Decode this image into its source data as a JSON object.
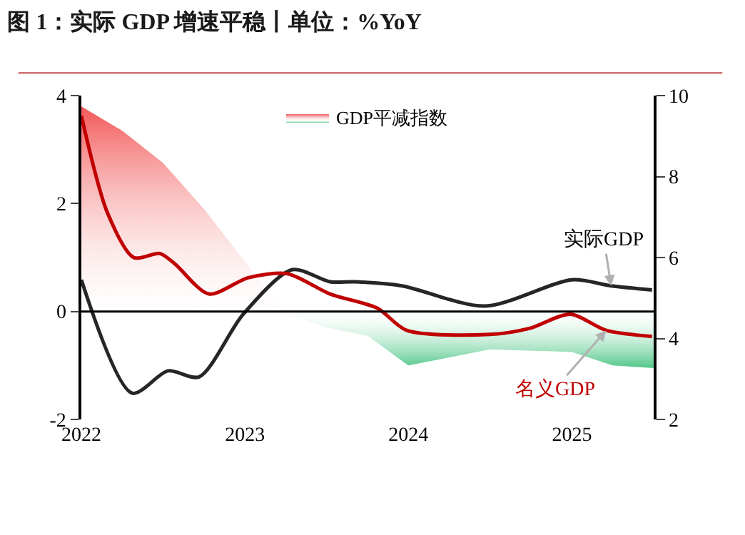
{
  "chart_data": {
    "type": "area",
    "title": "图 1：实际 GDP 增速平稳丨单位：%YoY",
    "xlim": [
      2022,
      2025.5
    ],
    "xticks": [
      2022,
      2023,
      2024,
      2025
    ],
    "ylim": [
      -2,
      4
    ],
    "yticks": [
      -2,
      0,
      2,
      4
    ],
    "y2lim": [
      2,
      10
    ],
    "y2ticks": [
      2,
      4,
      6,
      8,
      10
    ],
    "legend": "top",
    "ref_lines": [
      {
        "axis": "y",
        "value": 0,
        "color": "#000000"
      }
    ],
    "series": [
      {
        "name": "GDP平减指数",
        "color": "#f03a3a",
        "colors": [
          "#f03a3a",
          "#f03a3a",
          "#f03a3a",
          "#f03a3a",
          "#3cc07a",
          "#3cc07a",
          "#3cc07a",
          "#3cc07a",
          "#3cc07a",
          "#3cc07a",
          "#3cc07a",
          "#3cc07a"
        ],
        "x": [
          2022,
          2022.25,
          2022.5,
          2022.75,
          2023.25,
          2023.5,
          2023.75,
          2024,
          2024.5,
          2025,
          2025.25,
          2025.5
        ],
        "values": [
          3.8,
          3.35,
          2.75,
          1.9,
          -0.05,
          -0.3,
          -0.45,
          -1.0,
          -0.7,
          -0.75,
          -1.0,
          -1.05
        ]
      },
      {
        "name": "实际GDP",
        "type": "line",
        "axis": "y2",
        "color": "#262626",
        "x": [
          2022,
          2022.31,
          2022.53,
          2022.72,
          2022.99,
          2023.29,
          2023.52,
          2023.67,
          2023.96,
          2024.47,
          2025.0,
          2025.24,
          2025.49
        ],
        "values": [
          5.45,
          2.65,
          3.2,
          3.05,
          4.6,
          5.7,
          5.4,
          5.4,
          5.3,
          4.8,
          5.45,
          5.3,
          5.2
        ]
      },
      {
        "name": "名义GDP",
        "type": "line",
        "axis": "y2",
        "color": "#c00000",
        "x": [
          2022,
          2022.16,
          2022.32,
          2022.48,
          2022.57,
          2022.78,
          2023.02,
          2023.26,
          2023.52,
          2023.81,
          2023.99,
          2024.5,
          2024.74,
          2024.99,
          2025.21,
          2025.49
        ],
        "values": [
          9.5,
          7.1,
          6.0,
          6.1,
          5.85,
          5.1,
          5.5,
          5.6,
          5.1,
          4.75,
          4.2,
          4.1,
          4.25,
          4.6,
          4.2,
          4.05
        ]
      }
    ]
  }
}
